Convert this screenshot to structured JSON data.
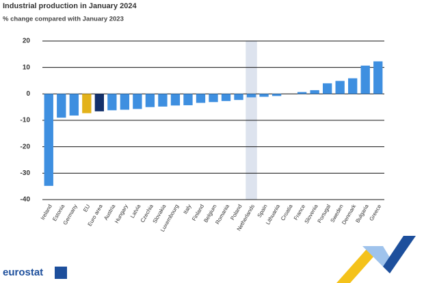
{
  "chart_data": {
    "type": "bar",
    "title": "Industrial production in January 2024",
    "subtitle": "% change compared with January 2023",
    "categories": [
      "Ireland",
      "Estonia",
      "Germany",
      "EU",
      "Euro area",
      "Austria",
      "Hungary",
      "Latvia",
      "Czechia",
      "Slovakia",
      "Luxembourg",
      "Italy",
      "Finland",
      "Belgium",
      "Romania",
      "Poland",
      "Netherlands",
      "Spain",
      "Lithuania",
      "Croatia",
      "France",
      "Slovenia",
      "Portugal",
      "Sweden",
      "Denmark",
      "Bulgaria",
      "Greece"
    ],
    "values": [
      -34.8,
      -9,
      -8.2,
      -7.3,
      -6.6,
      -6.2,
      -6,
      -5.7,
      -5,
      -4.8,
      -4.4,
      -4.3,
      -3.4,
      -3.1,
      -2.7,
      -2.3,
      -1.3,
      -1.1,
      -0.8,
      0,
      0.7,
      1.4,
      4,
      4.9,
      5.9,
      10.7,
      12.3
    ],
    "colors": [
      "#3e8fe0",
      "#3e8fe0",
      "#3e8fe0",
      "#e3b21a",
      "#13306b",
      "#3e8fe0",
      "#3e8fe0",
      "#3e8fe0",
      "#3e8fe0",
      "#3e8fe0",
      "#3e8fe0",
      "#3e8fe0",
      "#3e8fe0",
      "#3e8fe0",
      "#3e8fe0",
      "#3e8fe0",
      "#3e8fe0",
      "#3e8fe0",
      "#3e8fe0",
      "#3e8fe0",
      "#3e8fe0",
      "#3e8fe0",
      "#3e8fe0",
      "#3e8fe0",
      "#3e8fe0",
      "#3e8fe0",
      "#3e8fe0"
    ],
    "ylim": [
      -40,
      20
    ],
    "yticks": [
      -40,
      -30,
      -20,
      -10,
      0,
      10,
      20
    ],
    "grid": true,
    "logo_text": "eurostat"
  }
}
